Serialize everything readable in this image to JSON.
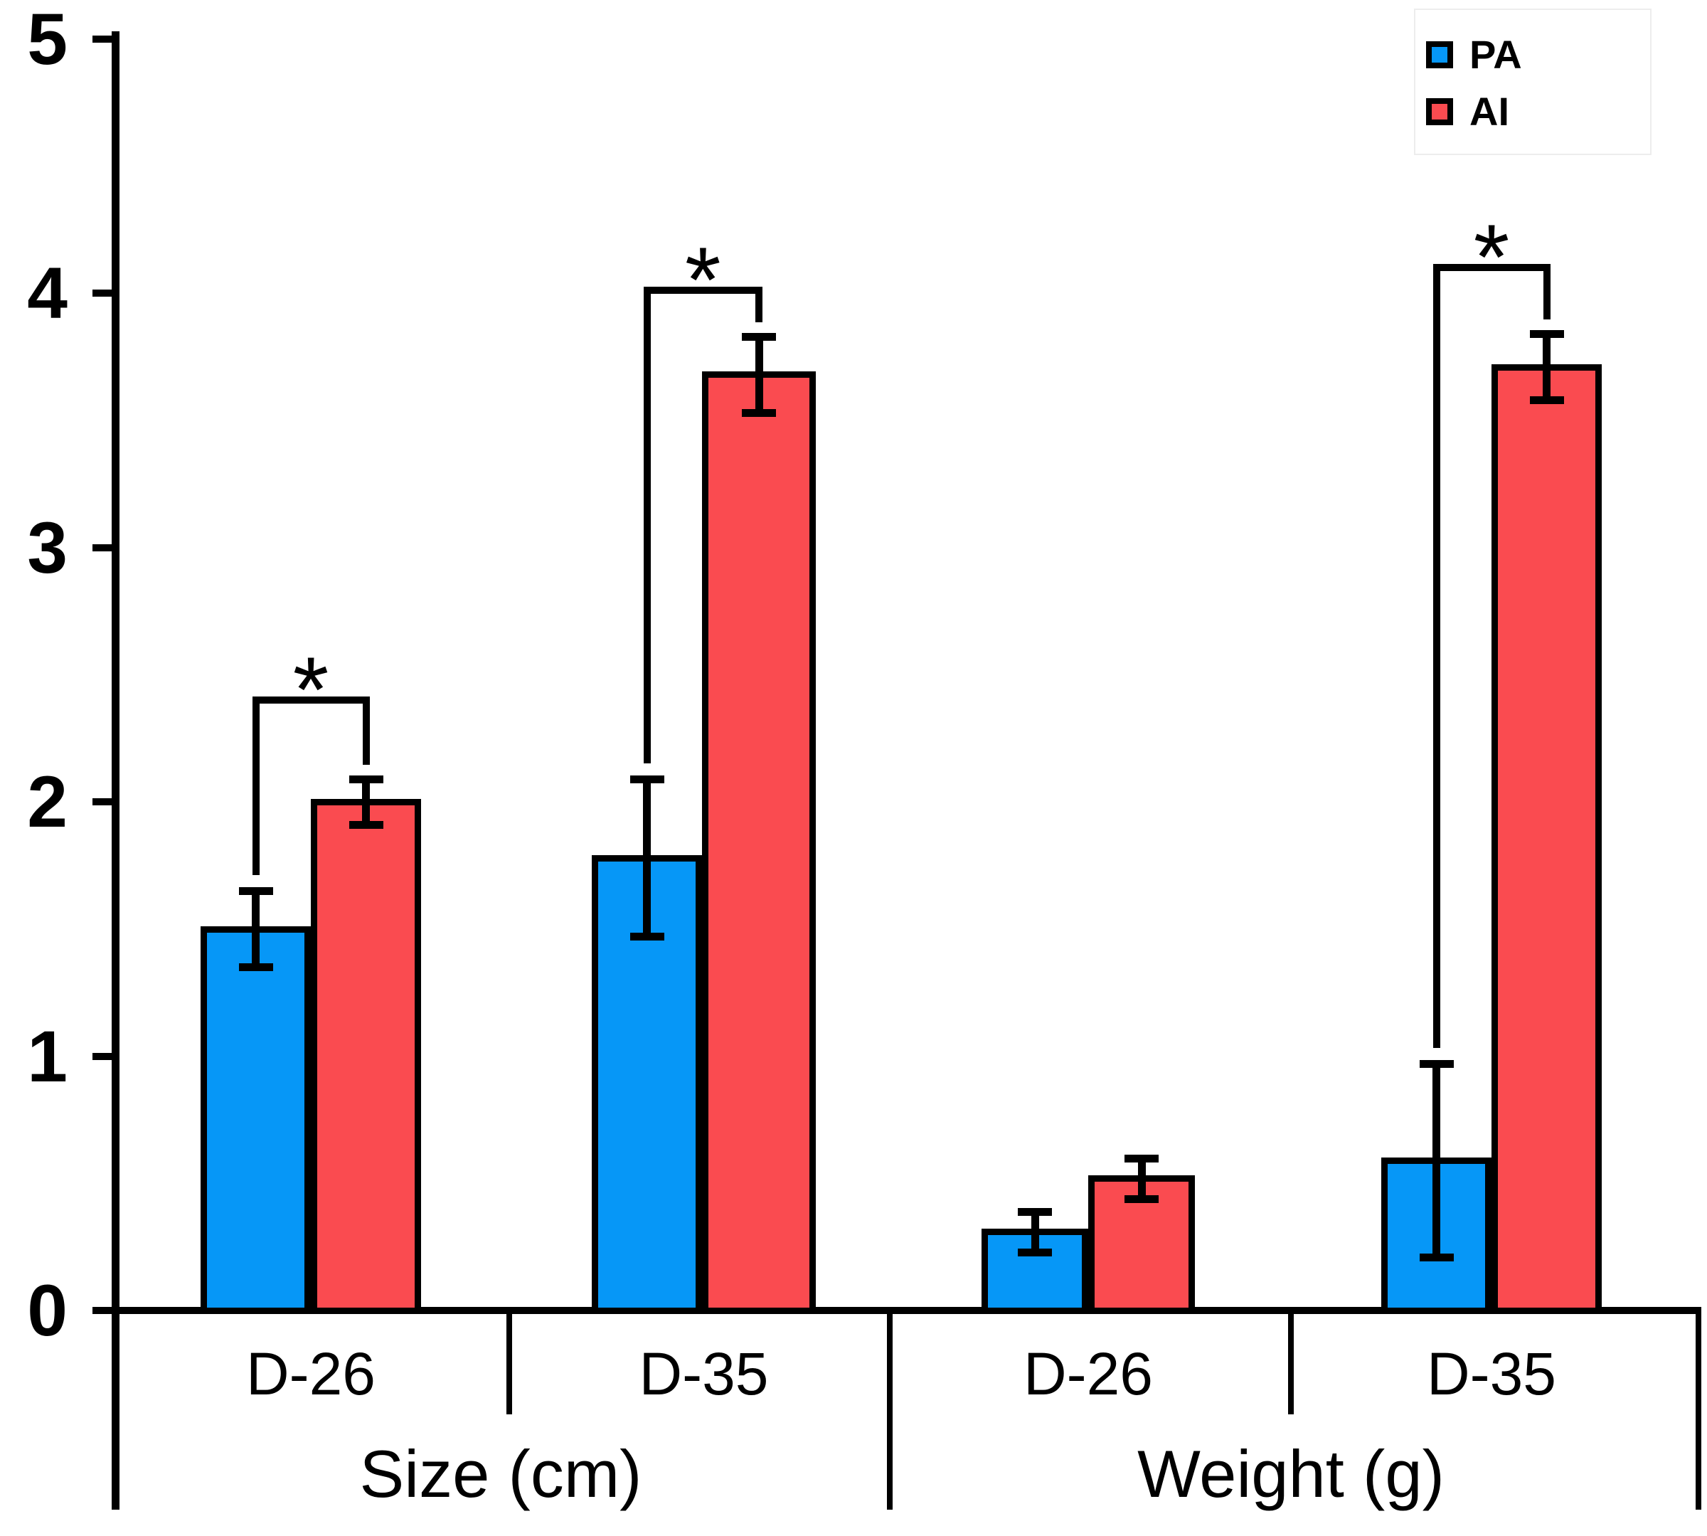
{
  "chart_data": {
    "type": "bar",
    "title": "",
    "ylabel": "",
    "ylim": [
      0,
      5
    ],
    "yticks": [
      "0",
      "1",
      "2",
      "3",
      "4",
      "5"
    ],
    "grid": false,
    "legend_position": "top-right",
    "legend": [
      {
        "label": "PA",
        "color": "#0697F7"
      },
      {
        "label": "AI",
        "color": "#FA4B50"
      }
    ],
    "sections": [
      {
        "label": "Size (cm)",
        "groups": [
          {
            "label": "D-26",
            "bars": [
              {
                "series": "PA",
                "value": 1.5,
                "err": 0.15
              },
              {
                "series": "AI",
                "value": 2.0,
                "err": 0.09
              }
            ],
            "significance": {
              "symbol": "*",
              "level": 2.4
            }
          },
          {
            "label": "D-35",
            "bars": [
              {
                "series": "PA",
                "value": 1.78,
                "err": 0.31
              },
              {
                "series": "AI",
                "value": 3.68,
                "err": 0.15
              }
            ],
            "significance": {
              "symbol": "*",
              "level": 4.01
            }
          }
        ]
      },
      {
        "label": "Weight (g)",
        "groups": [
          {
            "label": "D-26",
            "bars": [
              {
                "series": "PA",
                "value": 0.31,
                "err": 0.08
              },
              {
                "series": "AI",
                "value": 0.52,
                "err": 0.08
              }
            ],
            "significance": null
          },
          {
            "label": "D-35",
            "bars": [
              {
                "series": "PA",
                "value": 0.59,
                "err": 0.38
              },
              {
                "series": "AI",
                "value": 3.71,
                "err": 0.13
              }
            ],
            "significance": {
              "symbol": "*",
              "level": 4.1
            }
          }
        ]
      }
    ]
  }
}
